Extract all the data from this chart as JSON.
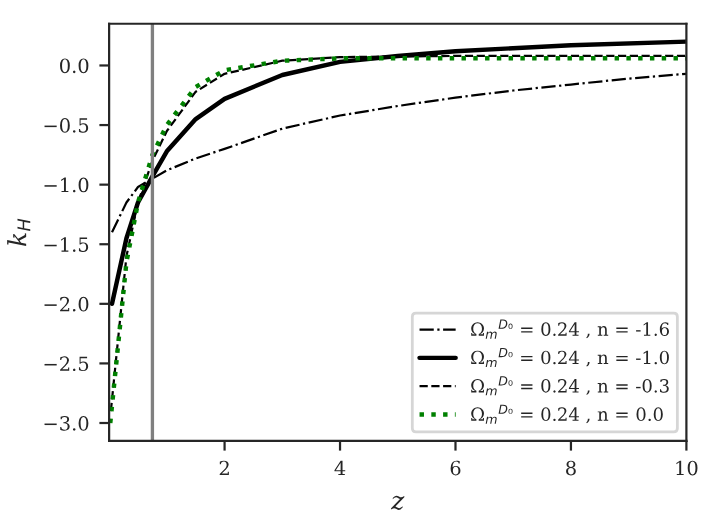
{
  "chart_data": {
    "type": "line",
    "xlabel": "z",
    "ylabel": "k$_{H}$",
    "xlim": [
      0,
      10
    ],
    "ylim": [
      -3.15,
      0.35
    ],
    "xticks": [
      2,
      4,
      6,
      8,
      10
    ],
    "yticks": [
      {
        "value": 0,
        "label": "0.0"
      },
      {
        "value": -0.5,
        "label": "−0.5"
      },
      {
        "value": -1,
        "label": "−1.0"
      },
      {
        "value": -1.5,
        "label": "−1.5"
      },
      {
        "value": -2,
        "label": "−2.0"
      },
      {
        "value": -2.5,
        "label": "−2.5"
      },
      {
        "value": -3,
        "label": "−3.0"
      }
    ],
    "grid": false,
    "legend": "bottom right",
    "ref_lines": [
      {
        "axis": "x",
        "value": 0.75,
        "color": "#808080"
      }
    ],
    "series": [
      {
        "name": "Ω$_{m}$$^{D₀}$ = 0.24 , n = -1.6",
        "color": "#000000",
        "line_style": "dashdot",
        "x": [
          0.05,
          0.3,
          0.5,
          0.75,
          1,
          1.5,
          2,
          3,
          4,
          5,
          6,
          7,
          8,
          9,
          10
        ],
        "values": [
          -1.4,
          -1.15,
          -1.02,
          -0.95,
          -0.88,
          -0.78,
          -0.7,
          -0.53,
          -0.42,
          -0.34,
          -0.27,
          -0.21,
          -0.16,
          -0.11,
          -0.07
        ]
      },
      {
        "name": "Ω$_{m}$$^{D₀}$ = 0.24 , n = -1.0",
        "color": "#000000",
        "line_style": "solid",
        "x": [
          0.05,
          0.3,
          0.5,
          0.75,
          1,
          1.5,
          2,
          3,
          4,
          5,
          6,
          8,
          10
        ],
        "values": [
          -2.0,
          -1.45,
          -1.15,
          -0.93,
          -0.72,
          -0.45,
          -0.28,
          -0.08,
          0.03,
          0.08,
          0.12,
          0.17,
          0.2
        ]
      },
      {
        "name": "Ω$_{m}$$^{D₀}$ = 0.24 , n = -0.3",
        "color": "#000000",
        "line_style": "dashed",
        "x": [
          0.03,
          0.3,
          0.5,
          0.75,
          1,
          1.5,
          2,
          3,
          4,
          6,
          10
        ],
        "values": [
          -2.9,
          -1.6,
          -1.15,
          -0.8,
          -0.55,
          -0.22,
          -0.07,
          0.04,
          0.07,
          0.08,
          0.08
        ]
      },
      {
        "name": "Ω$_{m}$$^{D₀}$ = 0.24 , n = 0.0",
        "color": "#008000",
        "line_style": "dotted",
        "x": [
          0.02,
          0.3,
          0.5,
          0.75,
          1,
          1.5,
          2,
          3,
          4,
          6,
          10
        ],
        "values": [
          -3.0,
          -1.65,
          -1.15,
          -0.75,
          -0.5,
          -0.18,
          -0.04,
          0.04,
          0.06,
          0.06,
          0.06
        ]
      }
    ]
  }
}
